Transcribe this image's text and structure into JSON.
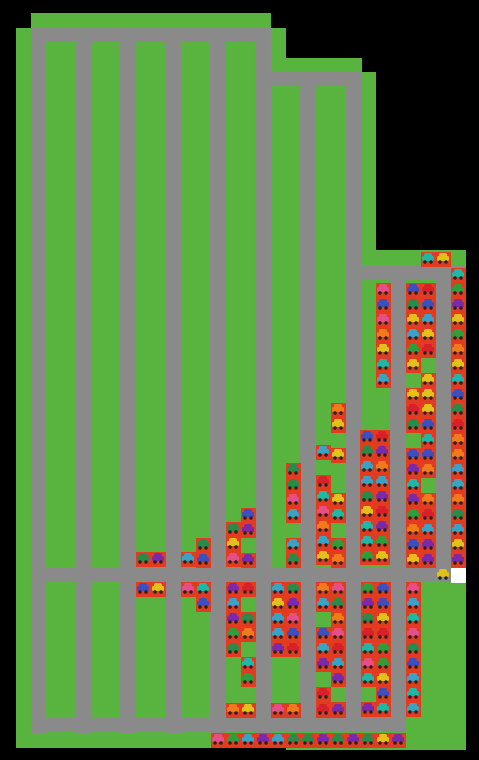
{
  "game": {
    "title": "",
    "status_text": ""
  },
  "colors": {
    "background": "#000000",
    "grass": "#58b33f",
    "road": "#8a8a8a",
    "occupied_stall": "#e23b1f",
    "empty_stall": "#ffffff",
    "car_palette": [
      "#3aa2c4",
      "#2a8a4a",
      "#3c4fc1",
      "#7a2aa8",
      "#e2c21a",
      "#e44f8a",
      "#d7202a",
      "#1fb7a7",
      "#f07b1a",
      "#2f9d3b"
    ]
  },
  "icons": {
    "car": "car-icon",
    "stall": "parking-stall-icon"
  }
}
